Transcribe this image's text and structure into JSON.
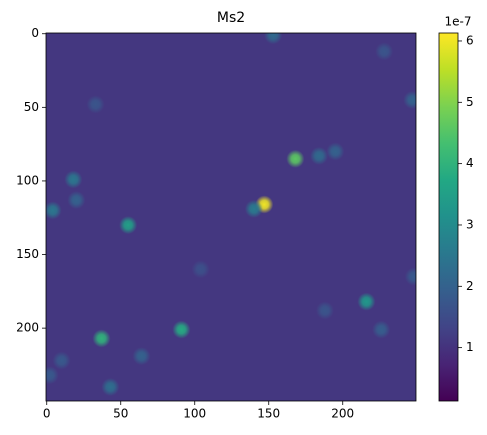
{
  "chart_data": {
    "type": "heatmap",
    "title": "Ms2",
    "colormap": "viridis",
    "xlim": [
      -0.5,
      249.5
    ],
    "ylim": [
      249.5,
      -0.5
    ],
    "xticks": [
      0,
      50,
      100,
      150,
      200
    ],
    "yticks": [
      0,
      50,
      100,
      150,
      200
    ],
    "clim": [
      0.13,
      6.13
    ],
    "cticks": [
      1,
      2,
      3,
      4,
      5,
      6
    ],
    "offset_label": "1e-7",
    "spots": [
      {
        "x": 147,
        "y": 116,
        "value": 6.0
      },
      {
        "x": 168,
        "y": 85,
        "value": 4.6
      },
      {
        "x": 37,
        "y": 207,
        "value": 4.0
      },
      {
        "x": 91,
        "y": 201,
        "value": 3.8
      },
      {
        "x": 55,
        "y": 130,
        "value": 3.5
      },
      {
        "x": 216,
        "y": 182,
        "value": 3.3
      },
      {
        "x": 18,
        "y": 99,
        "value": 2.5
      },
      {
        "x": 4,
        "y": 120,
        "value": 2.5
      },
      {
        "x": 140,
        "y": 119,
        "value": 2.6
      },
      {
        "x": 195,
        "y": 80,
        "value": 2.0
      },
      {
        "x": 20,
        "y": 113,
        "value": 2.0
      },
      {
        "x": 43,
        "y": 240,
        "value": 2.3
      },
      {
        "x": 64,
        "y": 219,
        "value": 2.0
      },
      {
        "x": 10,
        "y": 222,
        "value": 1.8
      },
      {
        "x": 153,
        "y": 1,
        "value": 2.2
      },
      {
        "x": 247,
        "y": 45,
        "value": 2.0
      },
      {
        "x": 226,
        "y": 201,
        "value": 1.9
      },
      {
        "x": 33,
        "y": 48,
        "value": 1.7
      },
      {
        "x": 248,
        "y": 165,
        "value": 1.8
      },
      {
        "x": 104,
        "y": 160,
        "value": 1.6
      },
      {
        "x": 184,
        "y": 83,
        "value": 2.2
      },
      {
        "x": 228,
        "y": 12,
        "value": 1.7
      },
      {
        "x": 188,
        "y": 188,
        "value": 1.7
      },
      {
        "x": 2,
        "y": 232,
        "value": 1.8
      }
    ]
  }
}
